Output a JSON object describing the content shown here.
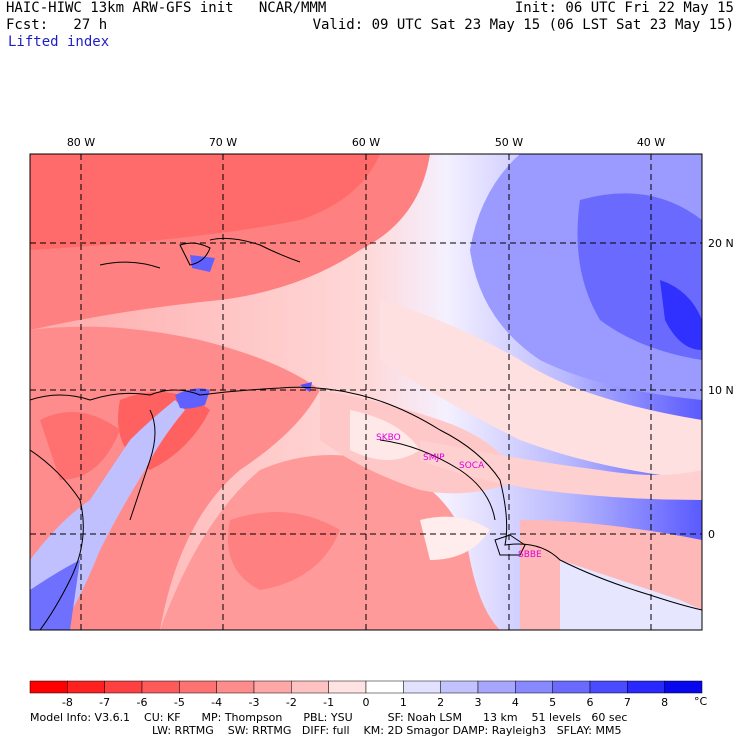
{
  "header": {
    "line1_left": "HAIC-HIWC 13km ARW-GFS init   NCAR/MMM",
    "line2_left": "Fcst:   27 h",
    "line1_right": "Init: 06 UTC Fri 22 May 15",
    "line2_right": "Valid: 09 UTC Sat 23 May 15 (06 LST Sat 23 May 15)",
    "variable": "Lifted index"
  },
  "map": {
    "lon_labels": [
      "80 W",
      "70 W",
      "60 W",
      "50 W",
      "40 W"
    ],
    "lat_labels": [
      "20 N",
      "10 N",
      "0"
    ],
    "cities": [
      "SKBO",
      "SMJP",
      "SOCA",
      "SBBE"
    ]
  },
  "colorbar": {
    "ticks": [
      "-8",
      "-7",
      "-6",
      "-5",
      "-4",
      "-3",
      "-2",
      "-1",
      "0",
      "1",
      "2",
      "3",
      "4",
      "5",
      "6",
      "7",
      "8"
    ],
    "unit": "°C",
    "colors": [
      "#ff0000",
      "#ff2020",
      "#ff4040",
      "#ff5a5a",
      "#ff7272",
      "#ff8c8c",
      "#ffa6a6",
      "#ffc2c2",
      "#ffe2e2",
      "#ffffff",
      "#e2e2ff",
      "#c2c2ff",
      "#a6a6ff",
      "#8888ff",
      "#6a6aff",
      "#4a4aff",
      "#2828ff",
      "#0808ee"
    ]
  },
  "footer": {
    "line1": "Model Info: V3.6.1    CU: KF      MP: Thompson      PBL: YSU          SF: Noah LSM      13 km    51 levels   60 sec",
    "line2": "LW: RRTMG    SW: RRTMG   DIFF: full    KM: 2D Smagor DAMP: Rayleigh3   SFLAY: MM5"
  }
}
